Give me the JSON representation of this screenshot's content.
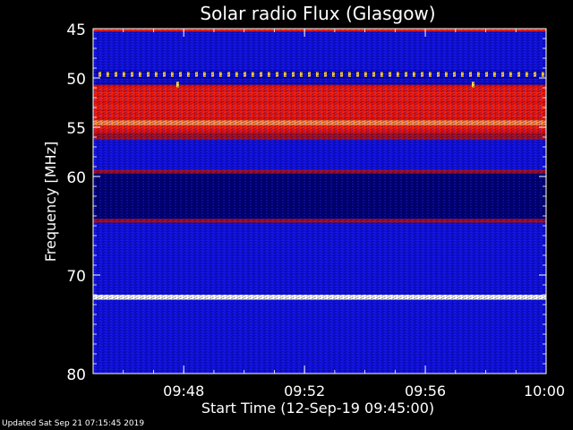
{
  "chart_data": {
    "type": "heatmap",
    "title": "Solar radio Flux (Glasgow)",
    "xlabel": "Start Time (12-Sep-19 09:45:00)",
    "ylabel": "Frequency [MHz]",
    "x_range": [
      "09:45:00",
      "10:00:00"
    ],
    "y_range_mhz": [
      45,
      80
    ],
    "y_ticks": [
      45,
      50,
      55,
      60,
      70,
      80
    ],
    "x_ticks": [
      "09:48",
      "09:52",
      "09:56",
      "10:00"
    ],
    "colormap": [
      "#000080",
      "#0000ff",
      "#800000",
      "#ff0000",
      "#ffff00",
      "#ffffff"
    ],
    "bands": [
      {
        "from_mhz": 45.0,
        "to_mhz": 45.3,
        "level": "red"
      },
      {
        "from_mhz": 45.3,
        "to_mhz": 49.2,
        "level": "blue"
      },
      {
        "from_mhz": 49.4,
        "to_mhz": 49.7,
        "level": "yellow-dots"
      },
      {
        "from_mhz": 50.7,
        "to_mhz": 55.6,
        "level": "red"
      },
      {
        "from_mhz": 54.3,
        "to_mhz": 54.8,
        "level": "orange"
      },
      {
        "from_mhz": 55.6,
        "to_mhz": 56.3,
        "level": "dark-red"
      },
      {
        "from_mhz": 56.3,
        "to_mhz": 59.3,
        "level": "blue"
      },
      {
        "from_mhz": 59.3,
        "to_mhz": 59.7,
        "level": "dark-red"
      },
      {
        "from_mhz": 59.7,
        "to_mhz": 64.3,
        "level": "dark-blue"
      },
      {
        "from_mhz": 64.3,
        "to_mhz": 64.7,
        "level": "dark-red"
      },
      {
        "from_mhz": 64.7,
        "to_mhz": 72.0,
        "level": "blue"
      },
      {
        "from_mhz": 72.0,
        "to_mhz": 72.5,
        "level": "white"
      },
      {
        "from_mhz": 72.5,
        "to_mhz": 80.0,
        "level": "blue"
      }
    ]
  },
  "footer": "Updated Sat Sep 21 07:15:45 2019"
}
